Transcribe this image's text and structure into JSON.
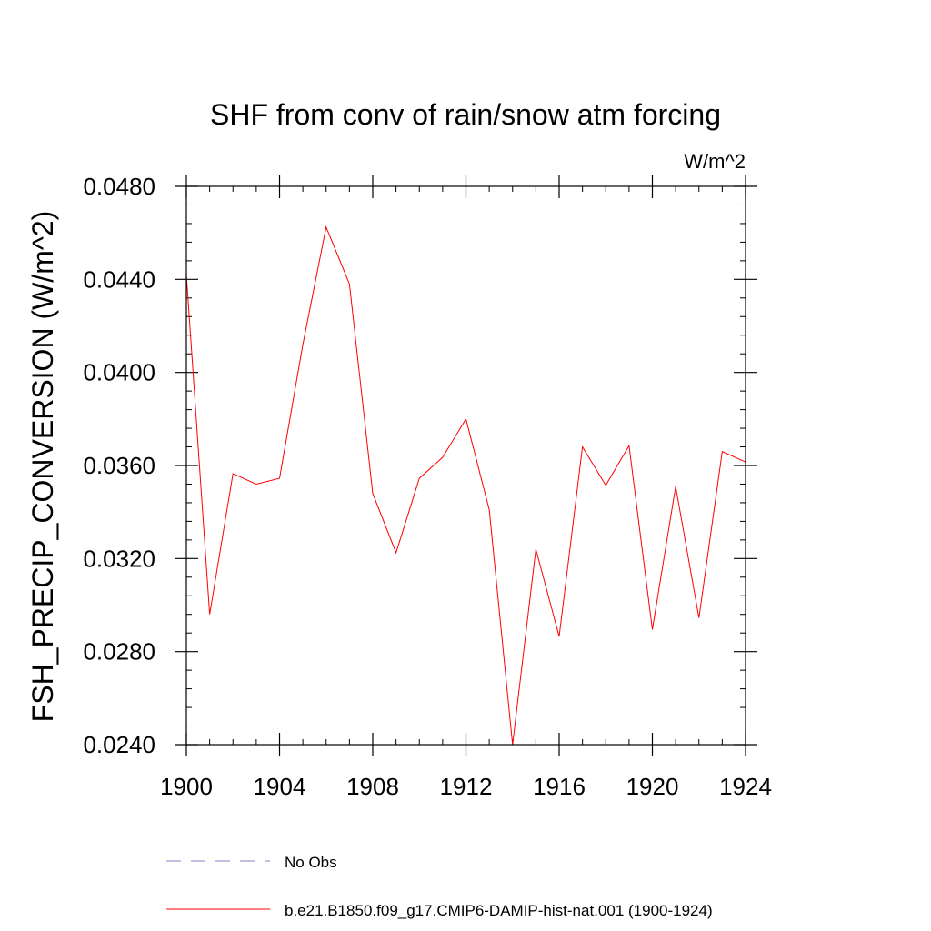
{
  "chart_data": {
    "type": "line",
    "title": "SHF from conv of rain/snow atm forcing",
    "units_label": "W/m^2",
    "ylabel": "FSH_PRECIP_CONVERSION  (W/m^2)",
    "xlabel": "",
    "xlim": [
      1900,
      1924
    ],
    "ylim": [
      0.024,
      0.048
    ],
    "x_ticks": [
      "1900",
      "1904",
      "1908",
      "1912",
      "1916",
      "1920",
      "1924"
    ],
    "y_ticks": [
      "0.0240",
      "0.0280",
      "0.0320",
      "0.0360",
      "0.0400",
      "0.0440",
      "0.0480"
    ],
    "x": [
      1900,
      1901,
      1902,
      1903,
      1904,
      1905,
      1906,
      1907,
      1908,
      1909,
      1910,
      1911,
      1912,
      1913,
      1914,
      1915,
      1916,
      1917,
      1918,
      1919,
      1920,
      1921,
      1922,
      1923,
      1924
    ],
    "series": [
      {
        "name": "b.e21.B1850.f09_g17.CMIP6-DAMIP-hist-nat.001 (1900-1924)",
        "color": "#ff0000",
        "values": [
          0.0442,
          0.0296,
          0.03565,
          0.0352,
          0.03545,
          0.0412,
          0.04625,
          0.0438,
          0.0348,
          0.03225,
          0.03545,
          0.03635,
          0.038,
          0.0341,
          0.024,
          0.0324,
          0.02865,
          0.0368,
          0.03515,
          0.03685,
          0.02895,
          0.0351,
          0.02945,
          0.0366,
          0.03615
        ]
      }
    ],
    "legend": {
      "placement": "bottom",
      "entries": [
        {
          "label": "No Obs",
          "style": "dashed",
          "color": "#8080c0"
        },
        {
          "label": "b.e21.B1850.f09_g17.CMIP6-DAMIP-hist-nat.001 (1900-1924)",
          "style": "solid",
          "color": "#ff0000"
        }
      ]
    },
    "grid": false
  }
}
